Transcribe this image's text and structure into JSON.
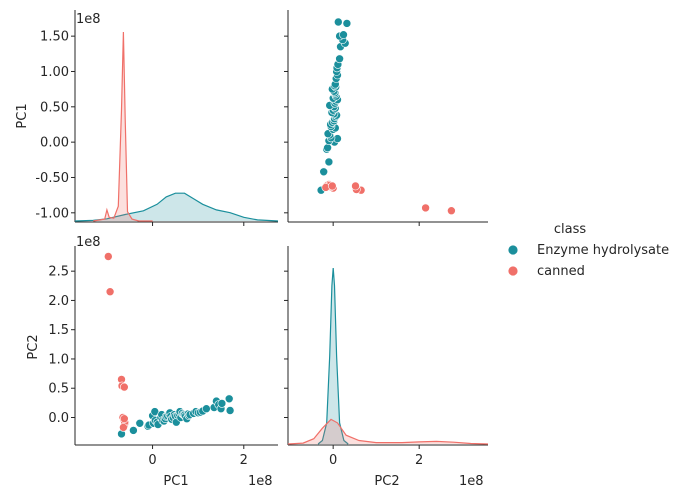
{
  "chart_data": {
    "type": "pairplot",
    "variables": [
      "PC1",
      "PC2"
    ],
    "scale_label": "1e8",
    "legend": {
      "title": "class",
      "placement": "right"
    },
    "ticks": {
      "PC1": [
        -1.0,
        -0.5,
        0.0,
        0.5,
        1.0,
        1.5
      ],
      "PC1_bottom": [
        0,
        2
      ],
      "PC2": [
        0.0,
        0.5,
        1.0,
        1.5,
        2.0,
        2.5
      ],
      "PC2_bottom": [
        0,
        2
      ]
    },
    "ranges": {
      "PC1": [
        -1.13,
        1.87
      ],
      "PC2": [
        -0.47,
        2.93
      ],
      "PC1_x": [
        -1.7,
        2.75
      ],
      "PC2_x": [
        -1.05,
        3.6
      ]
    },
    "series": [
      {
        "name": "Enzyme hydrolysate",
        "color": "#1b8f9c",
        "points": [
          [
            -0.68,
            -0.28
          ],
          [
            -0.42,
            -0.22
          ],
          [
            -0.28,
            -0.1
          ],
          [
            -0.1,
            -0.15
          ],
          [
            -0.08,
            -0.13
          ],
          [
            0.0,
            0.03
          ],
          [
            0.02,
            -0.1
          ],
          [
            0.05,
            0.1
          ],
          [
            0.06,
            -0.05
          ],
          [
            0.1,
            -0.08
          ],
          [
            0.12,
            -0.12
          ],
          [
            0.18,
            0.0
          ],
          [
            0.2,
            0.05
          ],
          [
            0.22,
            -0.05
          ],
          [
            0.25,
            -0.06
          ],
          [
            0.28,
            -0.02
          ],
          [
            0.3,
            0.02
          ],
          [
            0.33,
            0.03
          ],
          [
            0.36,
            0.06
          ],
          [
            0.38,
            0.08
          ],
          [
            0.4,
            0.02
          ],
          [
            0.42,
            -0.03
          ],
          [
            0.45,
            0.0
          ],
          [
            0.48,
            0.05
          ],
          [
            0.5,
            0.02
          ],
          [
            0.52,
            -0.08
          ],
          [
            0.55,
            0.04
          ],
          [
            0.58,
            0.06
          ],
          [
            0.6,
            0.1
          ],
          [
            0.62,
            0.0
          ],
          [
            0.65,
            0.07
          ],
          [
            0.68,
            0.05
          ],
          [
            0.7,
            0.04
          ],
          [
            0.72,
            0.02
          ],
          [
            0.75,
            -0.02
          ],
          [
            0.78,
            0.06
          ],
          [
            0.8,
            0.03
          ],
          [
            0.82,
            0.05
          ],
          [
            0.9,
            0.07
          ],
          [
            0.95,
            0.1
          ],
          [
            1.0,
            0.08
          ],
          [
            1.05,
            0.09
          ],
          [
            1.1,
            0.11
          ],
          [
            1.18,
            0.15
          ],
          [
            1.35,
            0.17
          ],
          [
            1.4,
            0.28
          ],
          [
            1.45,
            0.22
          ],
          [
            1.5,
            0.15
          ],
          [
            1.52,
            0.24
          ],
          [
            1.68,
            0.32
          ],
          [
            1.7,
            0.12
          ]
        ]
      },
      {
        "name": "canned",
        "color": "#f07069",
        "points": [
          [
            -0.93,
            2.15
          ],
          [
            -0.97,
            2.75
          ],
          [
            -0.68,
            0.65
          ],
          [
            -0.67,
            0.54
          ],
          [
            -0.62,
            0.52
          ],
          [
            -0.65,
            0.0
          ],
          [
            -0.63,
            -0.05
          ],
          [
            -0.6,
            -0.1
          ],
          [
            -0.62,
            -0.15
          ],
          [
            -0.61,
            -0.08
          ],
          [
            -0.64,
            -0.17
          ],
          [
            -0.62,
            -0.02
          ]
        ]
      }
    ],
    "kde": {
      "PC1": [
        {
          "series": "Enzyme hydrolysate",
          "x": [
            -1.7,
            -1.3,
            -1.0,
            -0.6,
            -0.2,
            0.1,
            0.3,
            0.5,
            0.7,
            0.9,
            1.1,
            1.4,
            1.7,
            2.0,
            2.3,
            2.75
          ],
          "y": [
            0.0,
            0.003,
            0.012,
            0.035,
            0.055,
            0.09,
            0.13,
            0.15,
            0.15,
            0.12,
            0.09,
            0.06,
            0.045,
            0.02,
            0.006,
            0.0
          ]
        },
        {
          "series": "canned",
          "x": [
            -1.3,
            -1.05,
            -1.0,
            -0.95,
            -0.85,
            -0.75,
            -0.68,
            -0.64,
            -0.6,
            -0.55,
            -0.45,
            -0.3,
            0.0
          ],
          "y": [
            0.0,
            0.01,
            0.06,
            0.02,
            0.015,
            0.08,
            0.6,
            1.02,
            0.55,
            0.05,
            0.01,
            0.0,
            0.0
          ]
        }
      ],
      "PC2": [
        {
          "series": "Enzyme hydrolysate",
          "x": [
            -0.35,
            -0.25,
            -0.15,
            -0.08,
            -0.03,
            0.0,
            0.03,
            0.08,
            0.15,
            0.25,
            0.35
          ],
          "y": [
            0.0,
            0.02,
            0.12,
            0.5,
            0.9,
            1.0,
            0.9,
            0.5,
            0.12,
            0.02,
            0.0
          ]
        },
        {
          "series": "canned",
          "x": [
            -1.05,
            -0.7,
            -0.45,
            -0.25,
            -0.05,
            0.1,
            0.3,
            0.6,
            1.0,
            1.6,
            2.0,
            2.4,
            2.8,
            3.2,
            3.6
          ],
          "y": [
            0.0,
            0.005,
            0.03,
            0.09,
            0.14,
            0.12,
            0.05,
            0.02,
            0.008,
            0.008,
            0.012,
            0.015,
            0.01,
            0.003,
            0.0
          ]
        }
      ]
    }
  }
}
